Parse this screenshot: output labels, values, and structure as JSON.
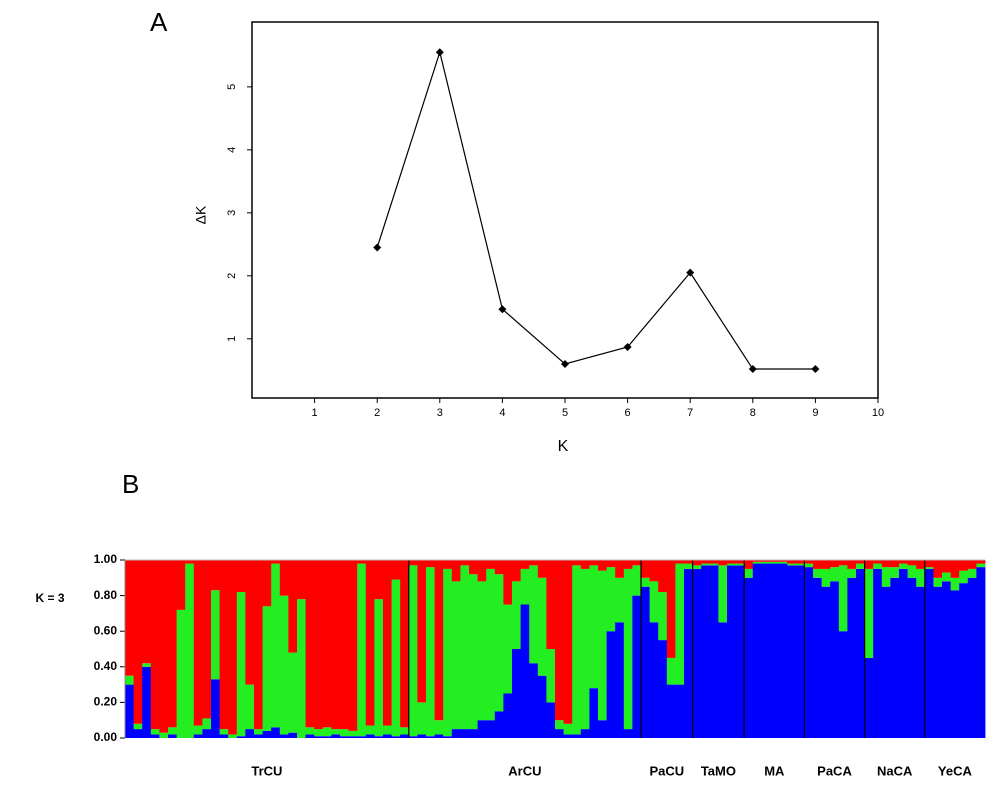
{
  "chart_data": [
    {
      "type": "line",
      "title": "A",
      "xlabel": "K",
      "ylabel": "ΔK",
      "x": [
        2,
        3,
        4,
        5,
        6,
        7,
        8,
        9
      ],
      "values": [
        2.45,
        5.55,
        1.47,
        0.6,
        0.87,
        2.05,
        0.52,
        0.52
      ],
      "color": "#000000",
      "xlim": [
        0,
        10
      ],
      "xticks": [
        1,
        2,
        3,
        4,
        5,
        6,
        7,
        8,
        9,
        10
      ],
      "ylim": [
        0.06,
        6.03
      ],
      "yticks": [
        1,
        2,
        3,
        4,
        5
      ]
    },
    {
      "type": "stacked_bar",
      "title": "B",
      "ylabel": "K = 3",
      "populations": [
        {
          "name": "TrCU",
          "n": 33
        },
        {
          "name": "ArCU",
          "n": 27
        },
        {
          "name": "PaCU",
          "n": 6
        },
        {
          "name": "TaMO",
          "n": 6
        },
        {
          "name": "MA",
          "n": 7
        },
        {
          "name": "PaCA",
          "n": 7
        },
        {
          "name": "NaCA",
          "n": 7
        },
        {
          "name": "YeCA",
          "n": 7
        }
      ],
      "series": [
        {
          "color": "#0000ff",
          "values": [
            0.3,
            0.05,
            0.4,
            0.02,
            0,
            0.02,
            0,
            0,
            0.02,
            0.05,
            0.33,
            0.02,
            0,
            0.01,
            0.05,
            0.02,
            0.04,
            0.06,
            0.02,
            0.03,
            0,
            0.02,
            0.01,
            0.01,
            0.02,
            0.01,
            0.01,
            0.01,
            0.02,
            0.01,
            0.02,
            0.01,
            0.02,
            0.01,
            0.02,
            0.01,
            0.02,
            0.01,
            0.05,
            0.05,
            0.05,
            0.1,
            0.1,
            0.15,
            0.25,
            0.5,
            0.75,
            0.42,
            0.35,
            0.2,
            0.05,
            0.02,
            0.02,
            0.05,
            0.28,
            0.1,
            0.6,
            0.65,
            0.05,
            0.8,
            0.85,
            0.65,
            0.55,
            0.3,
            0.3,
            0.95,
            0.95,
            0.97,
            0.97,
            0.65,
            0.97,
            0.97,
            0.9,
            0.98,
            0.98,
            0.98,
            0.98,
            0.97,
            0.97,
            0.96,
            0.9,
            0.85,
            0.88,
            0.6,
            0.9,
            0.95,
            0.45,
            0.95,
            0.85,
            0.9,
            0.95,
            0.9,
            0.85,
            0.95,
            0.85,
            0.88,
            0.83,
            0.87,
            0.9,
            0.96
          ]
        },
        {
          "color": "#22ee22",
          "values": [
            0.05,
            0.03,
            0.02,
            0.03,
            0.03,
            0.04,
            0.72,
            0.98,
            0.05,
            0.06,
            0.5,
            0.03,
            0.02,
            0.81,
            0.25,
            0.03,
            0.7,
            0.92,
            0.78,
            0.45,
            0.78,
            0.04,
            0.04,
            0.05,
            0.03,
            0.04,
            0.03,
            0.97,
            0.05,
            0.77,
            0.05,
            0.88,
            0.04,
            0.96,
            0.18,
            0.95,
            0.08,
            0.94,
            0.83,
            0.92,
            0.87,
            0.78,
            0.85,
            0.77,
            0.5,
            0.38,
            0.2,
            0.55,
            0.55,
            0.3,
            0.05,
            0.06,
            0.95,
            0.9,
            0.69,
            0.84,
            0.36,
            0.25,
            0.9,
            0.17,
            0.05,
            0.23,
            0.27,
            0.15,
            0.68,
            0.03,
            0.02,
            0.01,
            0.01,
            0.32,
            0.01,
            0.01,
            0.05,
            0.01,
            0.01,
            0.01,
            0.01,
            0.01,
            0.01,
            0.02,
            0.05,
            0.1,
            0.08,
            0.37,
            0.05,
            0.03,
            0.5,
            0.03,
            0.11,
            0.06,
            0.03,
            0.07,
            0.1,
            0.01,
            0.05,
            0.05,
            0.07,
            0.07,
            0.05,
            0.02
          ]
        },
        {
          "color": "#ff0000",
          "values": [
            0.65,
            0.92,
            0.58,
            0.95,
            0.97,
            0.94,
            0.28,
            0.02,
            0.93,
            0.89,
            0.17,
            0.95,
            0.98,
            0.18,
            0.7,
            0.95,
            0.26,
            0.02,
            0.2,
            0.52,
            0.22,
            0.94,
            0.95,
            0.94,
            0.95,
            0.95,
            0.96,
            0.02,
            0.93,
            0.22,
            0.93,
            0.11,
            0.94,
            0.03,
            0.8,
            0.04,
            0.9,
            0.05,
            0.12,
            0.03,
            0.08,
            0.12,
            0.05,
            0.08,
            0.25,
            0.12,
            0.05,
            0.03,
            0.1,
            0.5,
            0.9,
            0.92,
            0.03,
            0.05,
            0.03,
            0.06,
            0.04,
            0.1,
            0.05,
            0.03,
            0.1,
            0.12,
            0.18,
            0.55,
            0.02,
            0.02,
            0.03,
            0.02,
            0.02,
            0.03,
            0.02,
            0.02,
            0.05,
            0.01,
            0.01,
            0.01,
            0.01,
            0.02,
            0.02,
            0.02,
            0.05,
            0.05,
            0.04,
            0.03,
            0.05,
            0.02,
            0.05,
            0.02,
            0.04,
            0.04,
            0.02,
            0.03,
            0.05,
            0.04,
            0.1,
            0.07,
            0.1,
            0.06,
            0.05,
            0.02
          ]
        }
      ],
      "ylim": [
        0,
        1
      ],
      "yticks": [
        {
          "value": 0,
          "label": "0.00"
        },
        {
          "value": 0.2,
          "label": "0.20"
        },
        {
          "value": 0.4,
          "label": "0.40"
        },
        {
          "value": 0.6,
          "label": "0.60"
        },
        {
          "value": 0.8,
          "label": "0.80"
        },
        {
          "value": 1,
          "label": "1.00"
        }
      ]
    }
  ]
}
